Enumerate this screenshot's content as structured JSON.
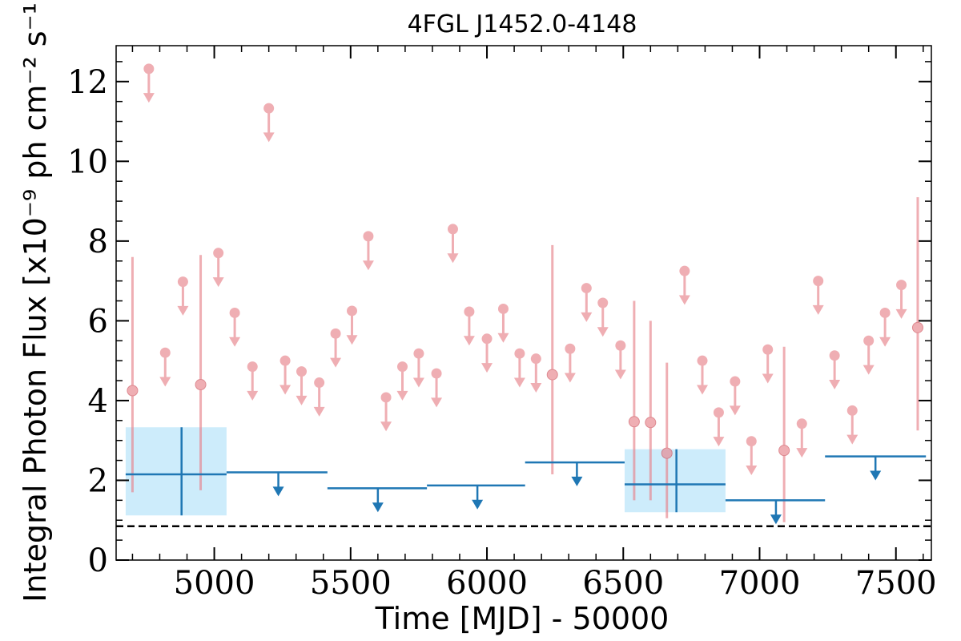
{
  "chart_data": {
    "type": "scatter",
    "title": "4FGL J1452.0-4148",
    "xlabel": "Time [MJD] - 50000",
    "ylabel": "Integral Photon Flux [x10⁻⁹ ph cm⁻² s⁻¹]",
    "xlim": [
      4640,
      7630
    ],
    "ylim": [
      0,
      12.9
    ],
    "xticks": [
      5000,
      5500,
      6000,
      6500,
      7000,
      7500
    ],
    "xtick_labels": [
      "5000",
      "5500",
      "6000",
      "6500",
      "7000",
      "7500"
    ],
    "yticks": [
      0,
      2,
      4,
      6,
      8,
      10,
      12
    ],
    "ytick_labels": [
      "0",
      "2",
      "4",
      "6",
      "8",
      "10",
      "12"
    ],
    "colors": {
      "short_bins": "#e8838c",
      "long_bins": "#1f77b4",
      "band": "#cdecfb",
      "reference": "#000000"
    },
    "reference_line": {
      "y": 0.85,
      "style": "dashed"
    },
    "short_bin_detections": [
      {
        "x": 4700,
        "y": 4.25,
        "ylow": 1.7,
        "yhigh": 7.6
      },
      {
        "x": 4950,
        "y": 4.4,
        "ylow": 1.75,
        "yhigh": 7.65
      },
      {
        "x": 6240,
        "y": 4.65,
        "ylow": 2.15,
        "yhigh": 7.9
      },
      {
        "x": 6540,
        "y": 3.47,
        "ylow": 1.5,
        "yhigh": 6.5
      },
      {
        "x": 6600,
        "y": 3.45,
        "ylow": 1.5,
        "yhigh": 6.0
      },
      {
        "x": 6660,
        "y": 2.68,
        "ylow": 1.05,
        "yhigh": 4.95
      },
      {
        "x": 7090,
        "y": 2.75,
        "ylow": 0.95,
        "yhigh": 5.35
      },
      {
        "x": 7580,
        "y": 5.83,
        "ylow": 3.25,
        "yhigh": 9.1
      }
    ],
    "short_bin_upper_limits": [
      {
        "x": 4760,
        "y": 12.32
      },
      {
        "x": 4820,
        "y": 5.2
      },
      {
        "x": 4885,
        "y": 6.98
      },
      {
        "x": 5015,
        "y": 7.7
      },
      {
        "x": 5075,
        "y": 6.2
      },
      {
        "x": 5140,
        "y": 4.85
      },
      {
        "x": 5200,
        "y": 11.33
      },
      {
        "x": 5260,
        "y": 5.0
      },
      {
        "x": 5320,
        "y": 4.73
      },
      {
        "x": 5385,
        "y": 4.45
      },
      {
        "x": 5445,
        "y": 5.68
      },
      {
        "x": 5505,
        "y": 6.25
      },
      {
        "x": 5565,
        "y": 8.12
      },
      {
        "x": 5630,
        "y": 4.08
      },
      {
        "x": 5690,
        "y": 4.85
      },
      {
        "x": 5750,
        "y": 5.18
      },
      {
        "x": 5815,
        "y": 4.68
      },
      {
        "x": 5875,
        "y": 8.3
      },
      {
        "x": 5935,
        "y": 6.23
      },
      {
        "x": 6000,
        "y": 5.55
      },
      {
        "x": 6060,
        "y": 6.3
      },
      {
        "x": 6120,
        "y": 5.18
      },
      {
        "x": 6180,
        "y": 5.05
      },
      {
        "x": 6305,
        "y": 5.3
      },
      {
        "x": 6365,
        "y": 6.82
      },
      {
        "x": 6425,
        "y": 6.45
      },
      {
        "x": 6490,
        "y": 5.38
      },
      {
        "x": 6725,
        "y": 7.25
      },
      {
        "x": 6790,
        "y": 5.0
      },
      {
        "x": 6850,
        "y": 3.7
      },
      {
        "x": 6910,
        "y": 4.48
      },
      {
        "x": 6970,
        "y": 2.98
      },
      {
        "x": 7030,
        "y": 5.28
      },
      {
        "x": 7155,
        "y": 3.42
      },
      {
        "x": 7215,
        "y": 7.0
      },
      {
        "x": 7275,
        "y": 5.13
      },
      {
        "x": 7340,
        "y": 3.75
      },
      {
        "x": 7400,
        "y": 5.5
      },
      {
        "x": 7460,
        "y": 6.2
      },
      {
        "x": 7520,
        "y": 6.9
      }
    ],
    "long_bin_detections": [
      {
        "x": 4880,
        "xlow": 4675,
        "xhigh": 5045,
        "y": 2.15,
        "ylow": 1.12,
        "yhigh": 3.33
      },
      {
        "x": 6695,
        "xlow": 6505,
        "xhigh": 6875,
        "y": 1.9,
        "ylow": 1.2,
        "yhigh": 2.78
      }
    ],
    "long_bin_upper_limits": [
      {
        "x": 5235,
        "xlow": 5045,
        "xhigh": 5415,
        "y": 2.2
      },
      {
        "x": 5600,
        "xlow": 5415,
        "xhigh": 5780,
        "y": 1.8
      },
      {
        "x": 5965,
        "xlow": 5780,
        "xhigh": 6140,
        "y": 1.87
      },
      {
        "x": 6330,
        "xlow": 6140,
        "xhigh": 6505,
        "y": 2.45
      },
      {
        "x": 7060,
        "xlow": 6875,
        "xhigh": 7240,
        "y": 1.5
      },
      {
        "x": 7425,
        "xlow": 7240,
        "xhigh": 7610,
        "y": 2.6
      }
    ]
  }
}
